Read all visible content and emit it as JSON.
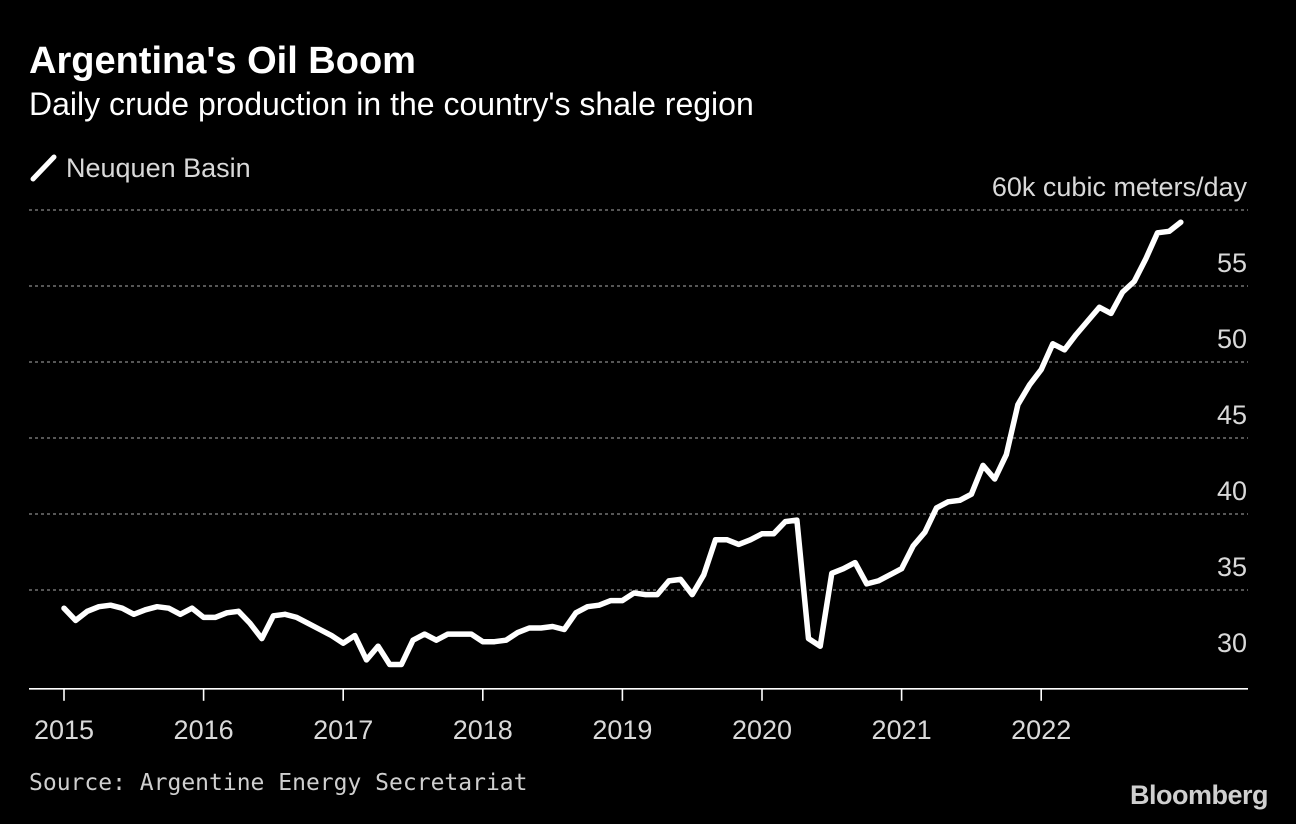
{
  "header": {
    "title": "Argentina's Oil Boom",
    "subtitle": "Daily crude production in the country's shale region"
  },
  "legend": {
    "label": "Neuquen Basin"
  },
  "footer": {
    "source": "Source: Argentine Energy Secretariat",
    "logo": "Bloomberg"
  },
  "colors": {
    "background": "#000000",
    "line": "#ffffff",
    "grid": "#8a8a8a",
    "text": "#d9d9d9"
  },
  "chart_data": {
    "type": "line",
    "title": "Argentina's Oil Boom",
    "subtitle": "Daily crude production in the country's shale region",
    "xlabel": "",
    "ylabel": "60k cubic meters/day",
    "ylim": [
      28.5,
      60
    ],
    "xlim": [
      2014.9,
      2023.1
    ],
    "y_ticks": [
      {
        "value": 60,
        "label": "60k cubic meters/day"
      },
      {
        "value": 55,
        "label": "55"
      },
      {
        "value": 50,
        "label": "50"
      },
      {
        "value": 45,
        "label": "45"
      },
      {
        "value": 40,
        "label": "40"
      },
      {
        "value": 35,
        "label": "35"
      },
      {
        "value": 30,
        "label": "30"
      }
    ],
    "x_ticks": [
      {
        "value": 2015,
        "label": "2015"
      },
      {
        "value": 2016,
        "label": "2016"
      },
      {
        "value": 2017,
        "label": "2017"
      },
      {
        "value": 2018,
        "label": "2018"
      },
      {
        "value": 2019,
        "label": "2019"
      },
      {
        "value": 2020,
        "label": "2020"
      },
      {
        "value": 2021,
        "label": "2021"
      },
      {
        "value": 2022,
        "label": "2022"
      }
    ],
    "grid": true,
    "series": [
      {
        "name": "Neuquen Basin",
        "start": 2015,
        "step_months": 1,
        "values": [
          33.8,
          33.0,
          33.6,
          33.9,
          34.0,
          33.8,
          33.4,
          33.7,
          33.9,
          33.8,
          33.4,
          33.8,
          33.2,
          33.2,
          33.5,
          33.6,
          32.8,
          31.8,
          33.3,
          33.4,
          33.2,
          32.8,
          32.4,
          32.0,
          31.5,
          32.0,
          30.4,
          31.3,
          30.1,
          30.1,
          31.7,
          32.1,
          31.7,
          32.1,
          32.1,
          32.1,
          31.6,
          31.6,
          31.7,
          32.2,
          32.5,
          32.5,
          32.6,
          32.4,
          33.5,
          33.9,
          34.0,
          34.3,
          34.3,
          34.8,
          34.7,
          34.7,
          35.6,
          35.7,
          34.7,
          36.0,
          38.3,
          38.3,
          38.0,
          38.3,
          38.7,
          38.7,
          39.5,
          39.6,
          31.8,
          31.3,
          36.1,
          36.4,
          36.8,
          35.4,
          35.6,
          36.0,
          36.4,
          37.9,
          38.8,
          40.4,
          40.8,
          40.9,
          41.3,
          43.2,
          42.3,
          43.9,
          47.2,
          48.5,
          49.5,
          51.2,
          50.8,
          51.8,
          52.7,
          53.6,
          53.2,
          54.6,
          55.3,
          56.8,
          58.5,
          58.6,
          59.2
        ]
      }
    ]
  }
}
